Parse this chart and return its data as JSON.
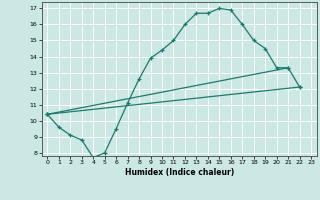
{
  "title": "",
  "xlabel": "Humidex (Indice chaleur)",
  "bg_color": "#cce8e4",
  "line_color": "#1a7a6e",
  "grid_color": "#ffffff",
  "xlim": [
    -0.5,
    23.5
  ],
  "ylim": [
    7.8,
    17.4
  ],
  "xticks": [
    0,
    1,
    2,
    3,
    4,
    5,
    6,
    7,
    8,
    9,
    10,
    11,
    12,
    13,
    14,
    15,
    16,
    17,
    18,
    19,
    20,
    21,
    22,
    23
  ],
  "yticks": [
    8,
    9,
    10,
    11,
    12,
    13,
    14,
    15,
    16,
    17
  ],
  "line1_x": [
    0,
    1,
    2,
    3,
    4,
    5,
    6,
    7,
    8,
    9,
    10,
    11,
    12,
    13,
    14,
    15,
    16,
    17,
    18,
    19,
    20,
    21,
    22
  ],
  "line1_y": [
    10.4,
    9.6,
    9.1,
    8.8,
    7.7,
    8.0,
    9.5,
    11.1,
    12.6,
    13.9,
    14.4,
    15.0,
    16.0,
    16.7,
    16.7,
    17.0,
    16.9,
    16.0,
    15.0,
    14.5,
    13.3,
    13.3,
    12.1
  ],
  "line2_x": [
    0,
    22
  ],
  "line2_y": [
    10.4,
    12.1
  ],
  "line3_x": [
    0,
    21
  ],
  "line3_y": [
    10.4,
    13.3
  ]
}
